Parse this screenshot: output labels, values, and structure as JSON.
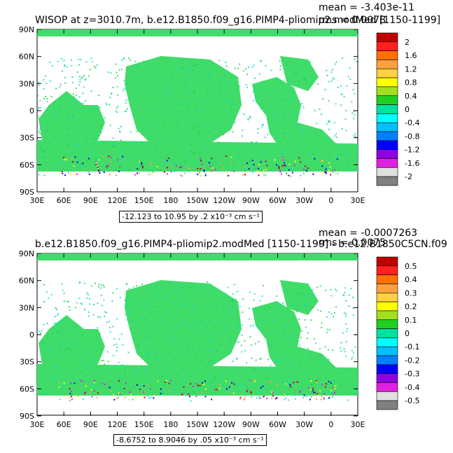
{
  "panels": [
    {
      "title": "WISOP at z=3010.7m, b.e12.B1850.f09_g16.PIMP4-pliomip2.modMed [1150-1199]",
      "mean": "mean = -3.403e-11",
      "rms": "rms = 0.0078",
      "range": "-12.123 to 10.95 by .2 x10⁻³ cm s⁻¹",
      "colorbar_labels": [
        "2",
        "1.6",
        "1.2",
        "0.8",
        "0.4",
        "0",
        "-0.4",
        "-0.8",
        "-1.2",
        "-1.6",
        "-2"
      ]
    },
    {
      "title": "b.e12.B1850.f09_g16.PIMP4-pliomip2.modMed [1150-1199] - b.e12.B1850C5CN.f09",
      "mean": "mean = -0.0007263",
      "rms": "rms = 0.0075",
      "range": "-8.6752 to 8.9046 by .05 x10⁻³ cm s⁻¹",
      "colorbar_labels": [
        "0.5",
        "0.4",
        "0.3",
        "0.2",
        "0.1",
        "0",
        "-0.1",
        "-0.2",
        "-0.3",
        "-0.4",
        "-0.5"
      ]
    }
  ],
  "lat_labels": [
    "90N",
    "60N",
    "30N",
    "0",
    "30S",
    "60S",
    "90S"
  ],
  "lon_labels": [
    "30E",
    "60E",
    "90E",
    "120E",
    "150E",
    "180",
    "150W",
    "120W",
    "90W",
    "60W",
    "30W",
    "0",
    "30E"
  ],
  "colorbar_colors": [
    "#c00000",
    "#ff2020",
    "#ff7000",
    "#ffa040",
    "#ffd040",
    "#ffff00",
    "#a0e020",
    "#20d020",
    "#00e0a0",
    "#00ffff",
    "#00c0ff",
    "#0080ff",
    "#0000ff",
    "#9000e0",
    "#e020e0",
    "#e0e0e0",
    "#808080"
  ],
  "field_colors": {
    "ocean": "#40dc6a",
    "ocean_alt": "#20d050",
    "cyan": "#00e0d0",
    "land": "#ffffff"
  }
}
